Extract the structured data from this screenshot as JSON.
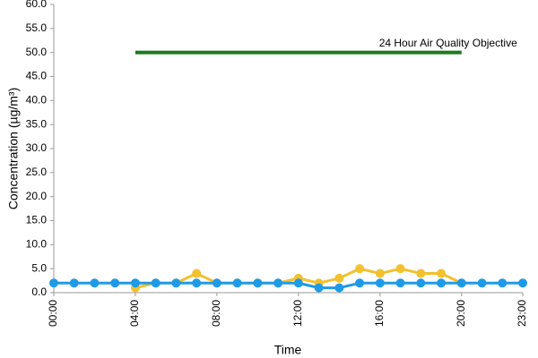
{
  "chart_data": {
    "type": "line",
    "y_label": "Concentration (µg/m³)",
    "x_label": "Time",
    "categories": [
      "00:00",
      null,
      null,
      null,
      "04:00",
      null,
      null,
      null,
      "08:00",
      null,
      null,
      null,
      "12:00",
      null,
      null,
      null,
      "16:00",
      null,
      null,
      null,
      "20:00",
      null,
      null,
      "23:00"
    ],
    "series": [
      {
        "name": "24 Hour Air Quality Objective",
        "color": "#1b7a1e",
        "markers": false,
        "values": [
          null,
          null,
          null,
          null,
          50,
          50,
          50,
          50,
          50,
          50,
          50,
          50,
          50,
          50,
          50,
          50,
          50,
          50,
          50,
          50,
          50,
          null,
          null,
          null
        ]
      },
      {
        "color": "#f2c12e",
        "markers": true,
        "values": [
          null,
          null,
          null,
          null,
          1,
          2,
          2,
          4,
          2,
          2,
          2,
          2,
          3,
          2,
          3,
          5,
          4,
          5,
          4,
          4,
          2,
          null,
          null,
          null
        ]
      },
      {
        "color": "#1f9ae6",
        "markers": true,
        "values": [
          2,
          2,
          2,
          2,
          2,
          2,
          2,
          2,
          2,
          2,
          2,
          2,
          2,
          1,
          1,
          2,
          2,
          2,
          2,
          2,
          2,
          2,
          2,
          2
        ]
      }
    ],
    "ylim": [
      0,
      60
    ],
    "yticks": [
      {
        "value": 0,
        "label": "0.0"
      },
      {
        "value": 5,
        "label": "5.0"
      },
      {
        "value": 10,
        "label": "10.0"
      },
      {
        "value": 15,
        "label": "15.0"
      },
      {
        "value": 20,
        "label": "20.0"
      },
      {
        "value": 25,
        "label": "25.0"
      },
      {
        "value": 30,
        "label": "30.0"
      },
      {
        "value": 35,
        "label": "35.0"
      },
      {
        "value": 40,
        "label": "40.0"
      },
      {
        "value": 45,
        "label": "45.0"
      },
      {
        "value": 50,
        "label": "50.0"
      },
      {
        "value": 55,
        "label": "55.0"
      },
      {
        "value": 60,
        "label": "60.0"
      }
    ],
    "grid": false
  }
}
